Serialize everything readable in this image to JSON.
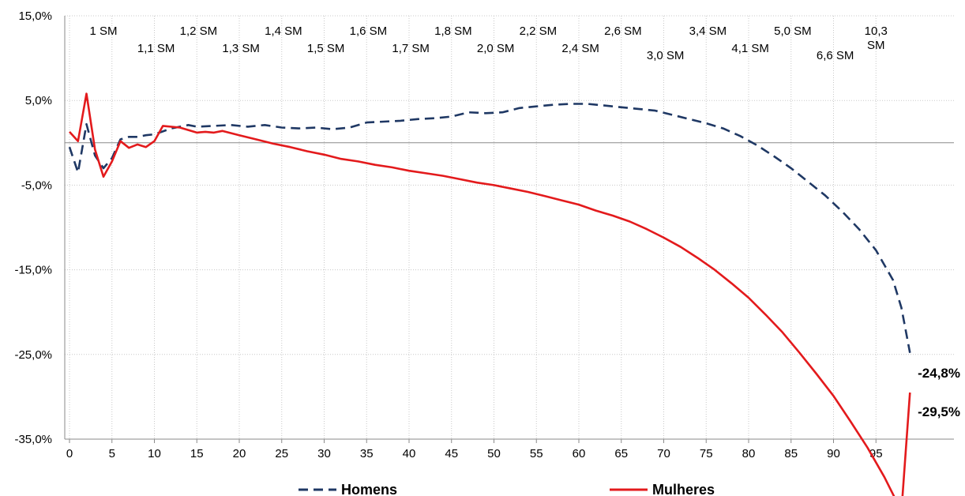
{
  "chart_data": {
    "type": "line",
    "title": "",
    "xlabel": "",
    "ylabel": "",
    "xlim": [
      0,
      99
    ],
    "ylim": [
      -35,
      15
    ],
    "x_ticks": [
      0,
      5,
      10,
      15,
      20,
      25,
      30,
      35,
      40,
      45,
      50,
      55,
      60,
      65,
      70,
      75,
      80,
      85,
      90,
      95
    ],
    "y_ticks": [
      15,
      5,
      -5,
      -15,
      -25,
      -35
    ],
    "y_tick_labels": [
      "15,0%",
      "5,0%",
      "-5,0%",
      "-15,0%",
      "-25,0%",
      "-35,0%"
    ],
    "grid": true,
    "legend_position": "bottom",
    "series": [
      {
        "name": "Homens",
        "color": "#1f3864",
        "style": "dashed",
        "end_label": "-24,8%",
        "points": [
          [
            0,
            -0.5
          ],
          [
            1,
            -3.5
          ],
          [
            2,
            2.2
          ],
          [
            3,
            -1.5
          ],
          [
            4,
            -3.0
          ],
          [
            5,
            -1.8
          ],
          [
            6,
            0.4
          ],
          [
            7,
            0.7
          ],
          [
            8,
            0.7
          ],
          [
            9,
            0.9
          ],
          [
            10,
            1.0
          ],
          [
            12,
            1.7
          ],
          [
            14,
            2.1
          ],
          [
            15,
            1.9
          ],
          [
            17,
            2.0
          ],
          [
            19,
            2.1
          ],
          [
            21,
            1.9
          ],
          [
            23,
            2.1
          ],
          [
            25,
            1.8
          ],
          [
            27,
            1.7
          ],
          [
            29,
            1.8
          ],
          [
            31,
            1.6
          ],
          [
            33,
            1.8
          ],
          [
            35,
            2.4
          ],
          [
            37,
            2.5
          ],
          [
            39,
            2.6
          ],
          [
            41,
            2.8
          ],
          [
            43,
            2.9
          ],
          [
            45,
            3.1
          ],
          [
            47,
            3.6
          ],
          [
            49,
            3.5
          ],
          [
            51,
            3.6
          ],
          [
            53,
            4.1
          ],
          [
            55,
            4.3
          ],
          [
            57,
            4.5
          ],
          [
            59,
            4.6
          ],
          [
            61,
            4.6
          ],
          [
            63,
            4.4
          ],
          [
            65,
            4.2
          ],
          [
            67,
            4.0
          ],
          [
            69,
            3.8
          ],
          [
            71,
            3.3
          ],
          [
            73,
            2.8
          ],
          [
            75,
            2.3
          ],
          [
            77,
            1.7
          ],
          [
            79,
            0.8
          ],
          [
            81,
            -0.3
          ],
          [
            83,
            -1.6
          ],
          [
            85,
            -3.0
          ],
          [
            87,
            -4.6
          ],
          [
            89,
            -6.2
          ],
          [
            91,
            -8.1
          ],
          [
            93,
            -10.2
          ],
          [
            95,
            -12.7
          ],
          [
            97,
            -16.2
          ],
          [
            98,
            -19.5
          ],
          [
            99,
            -24.8
          ]
        ]
      },
      {
        "name": "Mulheres",
        "color": "#e31a1c",
        "style": "solid",
        "end_label": "-29,5%",
        "points": [
          [
            0,
            1.3
          ],
          [
            1,
            0.2
          ],
          [
            2,
            5.8
          ],
          [
            3,
            -0.8
          ],
          [
            4,
            -4.0
          ],
          [
            5,
            -2.2
          ],
          [
            6,
            0.2
          ],
          [
            7,
            -0.6
          ],
          [
            8,
            -0.2
          ],
          [
            9,
            -0.5
          ],
          [
            10,
            0.2
          ],
          [
            11,
            2.0
          ],
          [
            13,
            1.8
          ],
          [
            15,
            1.2
          ],
          [
            16,
            1.3
          ],
          [
            17,
            1.2
          ],
          [
            18,
            1.4
          ],
          [
            20,
            0.9
          ],
          [
            22,
            0.4
          ],
          [
            24,
            -0.1
          ],
          [
            26,
            -0.5
          ],
          [
            28,
            -1.0
          ],
          [
            30,
            -1.4
          ],
          [
            32,
            -1.9
          ],
          [
            34,
            -2.2
          ],
          [
            36,
            -2.6
          ],
          [
            38,
            -2.9
          ],
          [
            40,
            -3.3
          ],
          [
            42,
            -3.6
          ],
          [
            44,
            -3.9
          ],
          [
            46,
            -4.3
          ],
          [
            48,
            -4.7
          ],
          [
            50,
            -5.0
          ],
          [
            52,
            -5.4
          ],
          [
            54,
            -5.8
          ],
          [
            56,
            -6.3
          ],
          [
            58,
            -6.8
          ],
          [
            60,
            -7.3
          ],
          [
            62,
            -8.0
          ],
          [
            64,
            -8.6
          ],
          [
            66,
            -9.3
          ],
          [
            68,
            -10.2
          ],
          [
            70,
            -11.2
          ],
          [
            72,
            -12.3
          ],
          [
            74,
            -13.6
          ],
          [
            76,
            -15.0
          ],
          [
            78,
            -16.6
          ],
          [
            80,
            -18.3
          ],
          [
            82,
            -20.3
          ],
          [
            84,
            -22.4
          ],
          [
            86,
            -24.8
          ],
          [
            88,
            -27.3
          ],
          [
            90,
            -29.9
          ],
          [
            92,
            -32.9
          ],
          [
            94,
            -36.0
          ],
          [
            96,
            -39.5
          ],
          [
            98,
            -43.5
          ],
          [
            99,
            -29.5
          ]
        ]
      }
    ],
    "annotations": [
      {
        "label": "1 SM",
        "x": 4.0,
        "row": "upper"
      },
      {
        "label": "1,1 SM",
        "x": 10.2,
        "row": "lower"
      },
      {
        "label": "1,2 SM",
        "x": 15.2,
        "row": "upper"
      },
      {
        "label": "1,3 SM",
        "x": 20.2,
        "row": "lower"
      },
      {
        "label": "1,4 SM",
        "x": 25.2,
        "row": "upper"
      },
      {
        "label": "1,5 SM",
        "x": 30.2,
        "row": "lower"
      },
      {
        "label": "1,6 SM",
        "x": 35.2,
        "row": "upper"
      },
      {
        "label": "1,7 SM",
        "x": 40.2,
        "row": "lower"
      },
      {
        "label": "1,8 SM",
        "x": 45.2,
        "row": "upper"
      },
      {
        "label": "2,0 SM",
        "x": 50.2,
        "row": "lower"
      },
      {
        "label": "2,2 SM",
        "x": 55.2,
        "row": "upper"
      },
      {
        "label": "2,4 SM",
        "x": 60.2,
        "row": "lower"
      },
      {
        "label": "2,6 SM",
        "x": 65.2,
        "row": "upper"
      },
      {
        "label": "3,0 SM",
        "x": 70.2,
        "row": "lowest"
      },
      {
        "label": "3,4 SM",
        "x": 75.2,
        "row": "upper"
      },
      {
        "label": "4,1 SM",
        "x": 80.2,
        "row": "lower"
      },
      {
        "label": "5,0 SM",
        "x": 85.2,
        "row": "upper"
      },
      {
        "label": "6,6 SM",
        "x": 90.2,
        "row": "lowest"
      },
      {
        "label": "10,3\nSM",
        "x": 95.0,
        "row": "upper"
      }
    ]
  }
}
